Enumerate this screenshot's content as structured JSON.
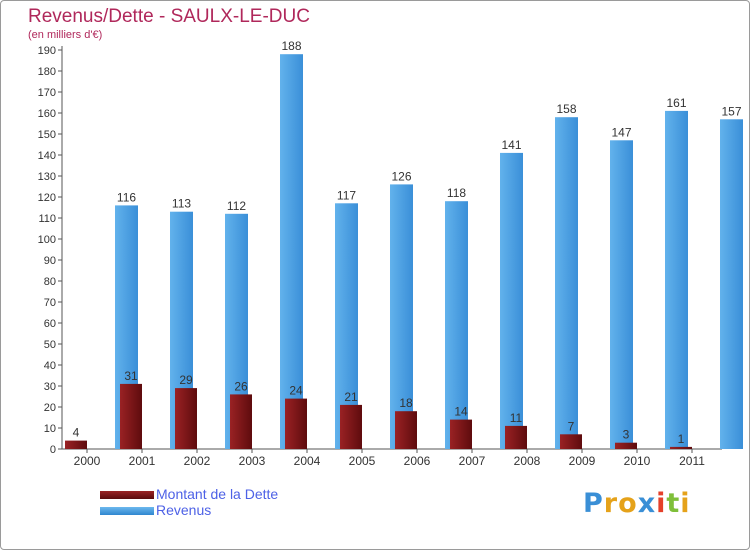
{
  "chart_data": {
    "type": "bar",
    "title": "Revenus/Dette - SAULX-LE-DUC",
    "subtitle": "(en milliers d'€)",
    "categories": [
      "2000",
      "2001",
      "2002",
      "2003",
      "2004",
      "2005",
      "2006",
      "2007",
      "2008",
      "2009",
      "2010",
      "2011"
    ],
    "series": [
      {
        "name": "Montant de la Dette",
        "color": "#7a1416",
        "values": [
          4,
          31,
          29,
          26,
          24,
          21,
          18,
          14,
          11,
          7,
          3,
          1
        ]
      },
      {
        "name": "Revenus",
        "color": "#4da3e6",
        "values": [
          116,
          113,
          112,
          188,
          117,
          126,
          118,
          141,
          158,
          147,
          161,
          157
        ]
      }
    ],
    "ylim": [
      0,
      190
    ],
    "yticks": [
      0,
      10,
      20,
      30,
      40,
      50,
      60,
      70,
      80,
      90,
      100,
      110,
      120,
      130,
      140,
      150,
      160,
      170,
      180,
      190
    ],
    "grid": false,
    "legend_position": "bottom-left"
  },
  "logo": {
    "letters": [
      "P",
      "r",
      "o",
      "x",
      "i",
      "t",
      "i"
    ],
    "colors": [
      "#3a8fd6",
      "#e5a21a",
      "#e5a21a",
      "#3a8fd6",
      "#e5402a",
      "#7fbf3a",
      "#e5a21a"
    ]
  }
}
